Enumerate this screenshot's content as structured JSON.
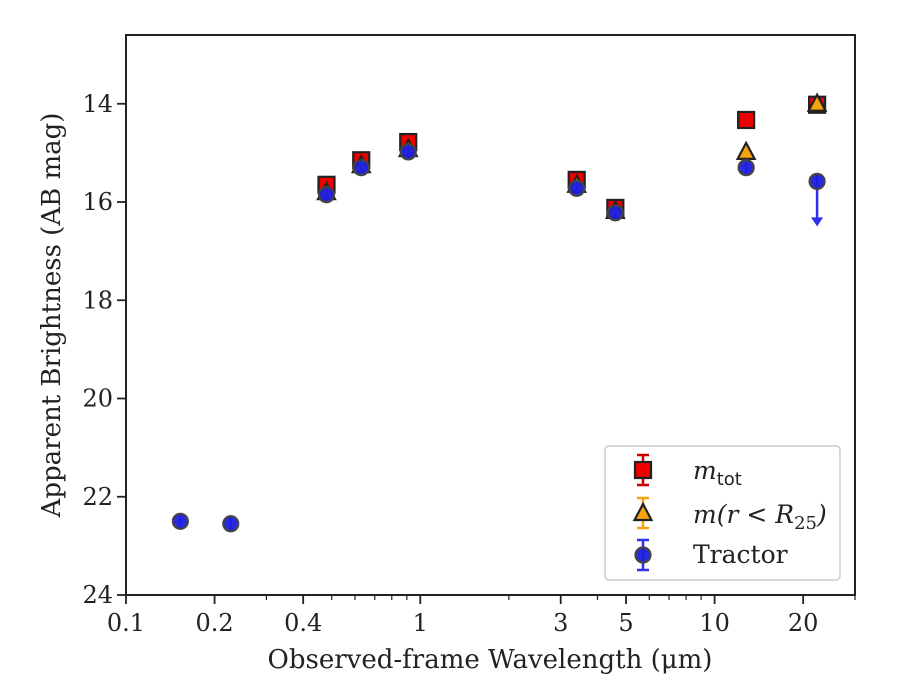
{
  "chart_data": {
    "type": "scatter",
    "xlabel": "Observed-frame Wavelength (μm)",
    "ylabel": "Apparent Brightness (AB mag)",
    "xscale": "log",
    "xlim": [
      0.1,
      30
    ],
    "ylim": [
      24,
      12.6
    ],
    "y_inverted": true,
    "xticks": [
      {
        "value": 0.1,
        "label": "0.1"
      },
      {
        "value": 0.2,
        "label": "0.2"
      },
      {
        "value": 0.4,
        "label": "0.4"
      },
      {
        "value": 1,
        "label": "1"
      },
      {
        "value": 3,
        "label": "3"
      },
      {
        "value": 5,
        "label": "5"
      },
      {
        "value": 10,
        "label": "10"
      },
      {
        "value": 20,
        "label": "20"
      }
    ],
    "yticks": [
      {
        "value": 14,
        "label": "14"
      },
      {
        "value": 16,
        "label": "16"
      },
      {
        "value": 18,
        "label": "18"
      },
      {
        "value": 20,
        "label": "20"
      },
      {
        "value": 22,
        "label": "22"
      },
      {
        "value": 24,
        "label": "24"
      }
    ],
    "grid": false,
    "legend_position": "lower-right",
    "series": [
      {
        "name": "m_tot",
        "marker": "square",
        "color": "#ee0000",
        "edge": "#222222",
        "errcolor": "#cc0000",
        "points": [
          {
            "x": 0.48,
            "y": 15.65
          },
          {
            "x": 0.63,
            "y": 15.15
          },
          {
            "x": 0.91,
            "y": 14.78
          },
          {
            "x": 3.4,
            "y": 15.55
          },
          {
            "x": 4.6,
            "y": 16.12
          },
          {
            "x": 12.8,
            "y": 14.33
          },
          {
            "x": 22.3,
            "y": 14.02
          }
        ]
      },
      {
        "name": "m(r < R25)",
        "marker": "triangle",
        "color": "#f5a30f",
        "edge": "#222222",
        "errcolor": "#f5a30f",
        "points": [
          {
            "x": 0.48,
            "y": 15.8
          },
          {
            "x": 0.63,
            "y": 15.25
          },
          {
            "x": 0.91,
            "y": 14.92
          },
          {
            "x": 3.4,
            "y": 15.65
          },
          {
            "x": 4.6,
            "y": 16.18
          },
          {
            "x": 12.8,
            "y": 14.98
          },
          {
            "x": 22.3,
            "y": 14.0
          }
        ]
      },
      {
        "name": "Tractor",
        "marker": "circle",
        "color": "#1d1de0",
        "edge": "#444444",
        "errcolor": "#2f2fee",
        "points": [
          {
            "x": 0.153,
            "y": 22.5
          },
          {
            "x": 0.227,
            "y": 22.55
          },
          {
            "x": 0.48,
            "y": 15.85
          },
          {
            "x": 0.63,
            "y": 15.3
          },
          {
            "x": 0.91,
            "y": 14.98
          },
          {
            "x": 3.4,
            "y": 15.72
          },
          {
            "x": 4.6,
            "y": 16.22
          },
          {
            "x": 12.8,
            "y": 15.3
          },
          {
            "x": 22.3,
            "y": 15.58,
            "upper_limit": true
          }
        ]
      }
    ],
    "legend": [
      {
        "label_main": "m",
        "label_sub": "tot",
        "label_rest": "",
        "marker": "square"
      },
      {
        "label_main": "m(r < R",
        "label_sub": "25",
        "label_rest": ")",
        "marker": "triangle"
      },
      {
        "label_main": "Tractor",
        "label_sub": "",
        "label_rest": "",
        "marker": "circle"
      }
    ]
  }
}
